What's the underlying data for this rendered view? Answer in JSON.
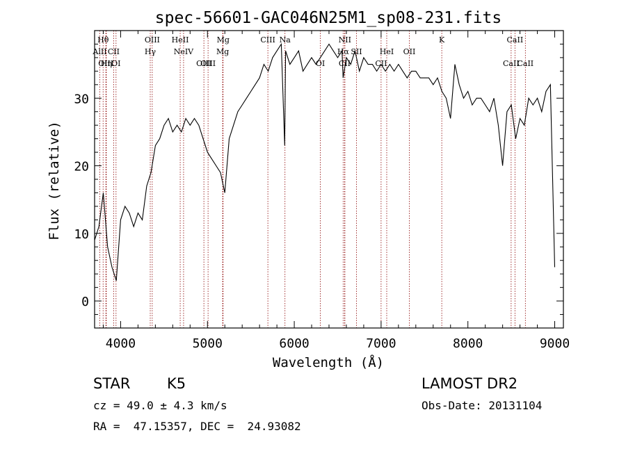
{
  "chart_data": {
    "type": "line",
    "title": "spec-56601-GAC046N25M1_sp08-231.fits",
    "xlabel": "Wavelength (Å)",
    "ylabel": "Flux (relative)",
    "xlim": [
      3700,
      9100
    ],
    "ylim": [
      -4,
      40
    ],
    "x_ticks": [
      4000,
      5000,
      6000,
      7000,
      8000,
      9000
    ],
    "y_ticks": [
      0,
      10,
      20,
      30
    ],
    "grid": false,
    "series": [
      {
        "x": [
          3700,
          3750,
          3800,
          3850,
          3900,
          3950,
          4000,
          4050,
          4100,
          4150,
          4200,
          4250,
          4300,
          4350,
          4400,
          4450,
          4500,
          4550,
          4600,
          4650,
          4700,
          4750,
          4800,
          4850,
          4900,
          4950,
          5000,
          5050,
          5100,
          5150,
          5200,
          5250,
          5300,
          5350,
          5400,
          5450,
          5500,
          5550,
          5600,
          5650,
          5700,
          5750,
          5800,
          5850,
          5890,
          5900,
          5950,
          6000,
          6050,
          6100,
          6150,
          6200,
          6250,
          6300,
          6350,
          6400,
          6450,
          6500,
          6550,
          6563,
          6600,
          6650,
          6700,
          6750,
          6800,
          6850,
          6900,
          6950,
          7000,
          7050,
          7100,
          7150,
          7200,
          7250,
          7300,
          7350,
          7400,
          7450,
          7500,
          7550,
          7600,
          7650,
          7700,
          7750,
          7800,
          7850,
          7900,
          7950,
          8000,
          8050,
          8100,
          8150,
          8200,
          8250,
          8300,
          8350,
          8400,
          8450,
          8500,
          8550,
          8600,
          8650,
          8700,
          8750,
          8800,
          8850,
          8900,
          8950,
          9000
        ],
        "y": [
          9,
          11,
          16,
          8,
          5,
          3,
          12,
          14,
          13,
          11,
          13,
          12,
          17,
          19,
          23,
          24,
          26,
          27,
          25,
          26,
          25,
          27,
          26,
          27,
          26,
          24,
          22,
          21,
          20,
          19,
          16,
          24,
          26,
          28,
          29,
          30,
          31,
          32,
          33,
          35,
          34,
          36,
          37,
          38,
          23,
          37,
          35,
          36,
          37,
          34,
          35,
          36,
          35,
          36,
          37,
          38,
          37,
          36,
          37,
          33,
          36,
          35,
          37,
          34,
          36,
          35,
          35,
          34,
          35,
          34,
          35,
          34,
          35,
          34,
          33,
          34,
          34,
          33,
          33,
          33,
          32,
          33,
          31,
          30,
          27,
          35,
          32,
          30,
          31,
          29,
          30,
          30,
          29,
          28,
          30,
          26,
          20,
          28,
          29,
          24,
          27,
          26,
          30,
          29,
          30,
          28,
          31,
          32,
          5
        ]
      }
    ],
    "lines": [
      {
        "name": "Hθ",
        "wave": 3798,
        "row": 1
      },
      {
        "name": "AlII",
        "wave": 3760,
        "row": 2
      },
      {
        "name": "OIII",
        "wave": 3830,
        "row": 3
      },
      {
        "name": "Hη",
        "wave": 3835,
        "row": 3
      },
      {
        "name": "CII",
        "wave": 3920,
        "row": 2
      },
      {
        "name": "OI",
        "wave": 3947,
        "row": 3
      },
      {
        "name": "OIII",
        "wave": 4364,
        "row": 1
      },
      {
        "name": "Hγ",
        "wave": 4341,
        "row": 2
      },
      {
        "name": "HeII",
        "wave": 4686,
        "row": 1
      },
      {
        "name": "NeIV",
        "wave": 4725,
        "row": 2
      },
      {
        "name": "OIII",
        "wave": 4959,
        "row": 3
      },
      {
        "name": "OIII",
        "wave": 5007,
        "row": 3
      },
      {
        "name": "Mg",
        "wave": 5175,
        "row": 2
      },
      {
        "name": "Mg",
        "wave": 5180,
        "row": 1
      },
      {
        "name": "CIII",
        "wave": 5696,
        "row": 1
      },
      {
        "name": "Na",
        "wave": 5893,
        "row": 1
      },
      {
        "name": "OI",
        "wave": 6300,
        "row": 3
      },
      {
        "name": "NII",
        "wave": 6583,
        "row": 1
      },
      {
        "name": "Hα",
        "wave": 6563,
        "row": 2
      },
      {
        "name": "SII",
        "wave": 6716,
        "row": 2
      },
      {
        "name": "CII",
        "wave": 6580,
        "row": 3
      },
      {
        "name": "CII",
        "wave": 7000,
        "row": 3
      },
      {
        "name": "OII",
        "wave": 7325,
        "row": 2
      },
      {
        "name": "K",
        "wave": 7699,
        "row": 1
      },
      {
        "name": "HeI",
        "wave": 7065,
        "row": 2
      },
      {
        "name": "CaII",
        "wave": 8542,
        "row": 1
      },
      {
        "name": "CaII",
        "wave": 8498,
        "row": 3
      },
      {
        "name": "CaII",
        "wave": 8662,
        "row": 3
      }
    ],
    "colors": {
      "spectrum": "#000000",
      "line_markers": "#8b0000",
      "axes": "#000000"
    }
  },
  "info": {
    "class": "STAR",
    "subclass": "K5",
    "survey": "LAMOST DR2",
    "cz": "cz = 49.0 ± 4.3 km/s",
    "obs_date": "Obs-Date: 20131104",
    "radec": "RA =  47.15357, DEC =  24.93082"
  }
}
